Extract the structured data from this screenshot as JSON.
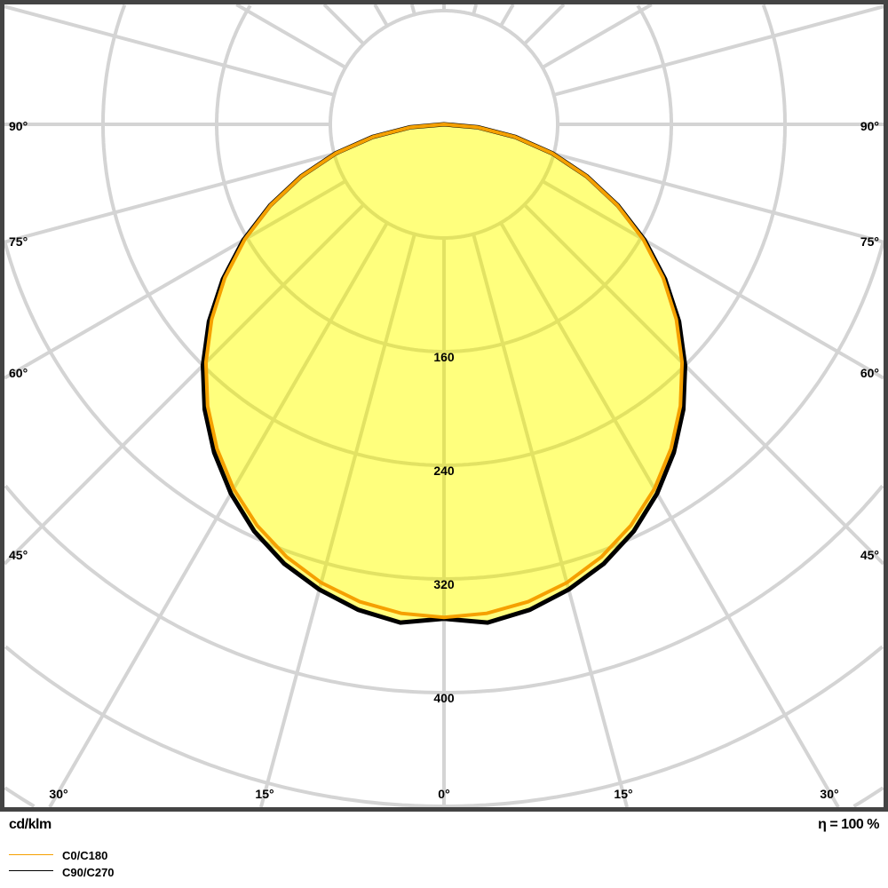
{
  "chart_data": {
    "type": "polar-line",
    "unit_label": "cd/klm",
    "efficiency_label": "η = 100 %",
    "radial_ticks": [
      160,
      240,
      320,
      400
    ],
    "angle_ticks": [
      "0°",
      "15°",
      "30°",
      "45°",
      "60°",
      "75°",
      "90°"
    ],
    "angles_deg": [
      0,
      5,
      10,
      15,
      20,
      25,
      30,
      35,
      40,
      45,
      50,
      55,
      60,
      65,
      70,
      75,
      80,
      85,
      90
    ],
    "series": [
      {
        "name": "C0/C180",
        "color": "#f5a000",
        "values": [
          347,
          345.5,
          341.2,
          334,
          324,
          311.4,
          296.2,
          278.6,
          258.8,
          237,
          213.4,
          188.3,
          161.9,
          134.5,
          106.6,
          78.6,
          50.6,
          23.7,
          0
        ]
      },
      {
        "name": "C90/C270",
        "color": "#000000",
        "values": [
          348,
          352,
          347,
          339,
          329,
          316,
          300,
          282,
          262,
          240,
          216,
          190,
          163,
          135,
          107,
          79,
          51,
          24,
          0
        ]
      }
    ],
    "fill_color": "#ffff66",
    "grid": true
  }
}
